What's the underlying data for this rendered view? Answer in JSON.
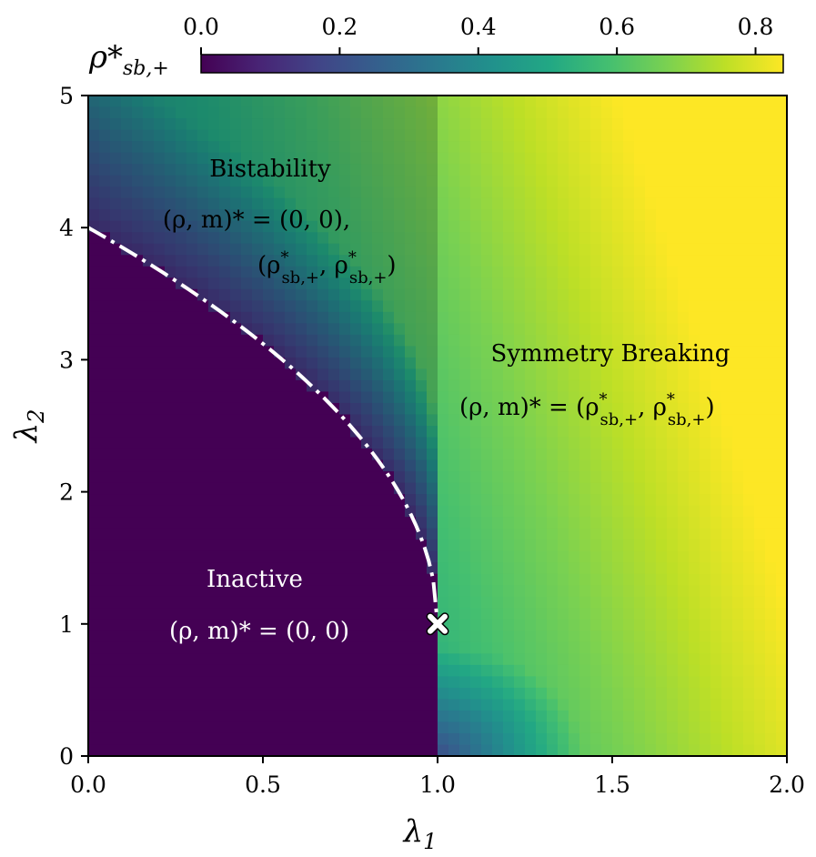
{
  "chart_data": {
    "type": "heatmap",
    "colormap": "viridis",
    "colorbar": {
      "label": "ρ*",
      "label_sub": "sb,+",
      "ticks": [
        "0.0",
        "0.2",
        "0.4",
        "0.6",
        "0.8"
      ],
      "tick_values": [
        0.0,
        0.2,
        0.4,
        0.6,
        0.8
      ],
      "range": [
        0.0,
        0.84
      ],
      "placement": "top"
    },
    "x_axis": {
      "label": "λ",
      "label_sub": "1",
      "ticks": [
        "0.0",
        "0.5",
        "1.0",
        "1.5",
        "2.0"
      ],
      "tick_values": [
        0.0,
        0.5,
        1.0,
        1.5,
        2.0
      ],
      "range": [
        0.0,
        2.0
      ]
    },
    "y_axis": {
      "label": "λ",
      "label_sub": "2",
      "ticks": [
        "0",
        "1",
        "2",
        "3",
        "4",
        "5"
      ],
      "tick_values": [
        0,
        1,
        2,
        3,
        4,
        5
      ],
      "range": [
        0,
        5
      ]
    },
    "boundary_curve": {
      "style": "dash-dot",
      "color": "#ffffff",
      "description_points": [
        [
          0.0,
          4.0
        ],
        [
          1.0,
          1.0
        ]
      ]
    },
    "critical_point": {
      "x": 1.0,
      "y": 1.0,
      "marker": "X",
      "color": "#ffffff"
    },
    "regions": {
      "bistability": {
        "name": "Bistability",
        "eq1_lhs": "(ρ, m)* = (0, 0),",
        "eq2_open": "(ρ",
        "eq2_sup": "*",
        "eq2_sub": "sb,+",
        "eq2_comma": ", ρ",
        "eq2_close": ")"
      },
      "symmetry_breaking": {
        "name": "Symmetry Breaking",
        "eq_lhs": "(ρ, m)* = (ρ",
        "eq_sup": "*",
        "eq_sub": "sb,+",
        "eq_comma": ", ρ",
        "eq_close": ")"
      },
      "inactive": {
        "name": "Inactive",
        "eq": "(ρ, m)* = (0, 0)"
      }
    },
    "colors": {
      "inactive": "#440154",
      "bistable_shade": "#000000",
      "text_dark": "#000000",
      "text_light": "#ffffff"
    }
  }
}
